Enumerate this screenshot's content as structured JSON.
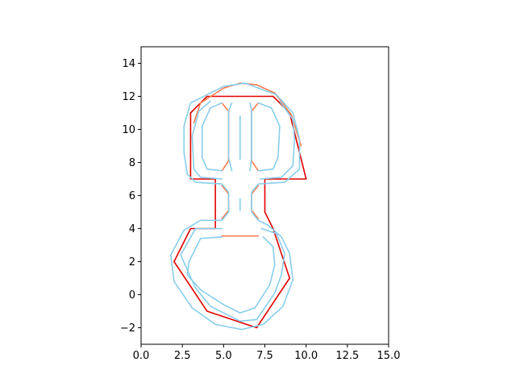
{
  "chart_data": {
    "type": "line",
    "title": "",
    "xlabel": "",
    "ylabel": "",
    "xlim": [
      0,
      15
    ],
    "ylim": [
      -3,
      15
    ],
    "grid": false,
    "aspect": "equal",
    "x_ticks": [
      0.0,
      2.5,
      5.0,
      7.5,
      10.0,
      12.5,
      15.0
    ],
    "x_tick_labels": [
      "0.0",
      "2.5",
      "5.0",
      "7.5",
      "10.0",
      "12.5",
      "15.0"
    ],
    "y_ticks": [
      -2,
      0,
      2,
      4,
      6,
      8,
      10,
      12,
      14
    ],
    "y_tick_labels": [
      "−2",
      "0",
      "2",
      "4",
      "6",
      "8",
      "10",
      "12",
      "14"
    ],
    "series": [
      {
        "color": "#e00000",
        "values": [
          [
            3,
            7
          ],
          [
            3,
            11
          ],
          [
            4,
            12
          ],
          [
            8,
            12
          ],
          [
            9,
            11
          ],
          [
            10,
            7
          ],
          [
            7.5,
            7
          ],
          [
            7.5,
            5
          ],
          [
            8,
            4
          ],
          [
            9,
            1
          ],
          [
            7,
            -2
          ],
          [
            4,
            -1
          ],
          [
            2,
            2
          ],
          [
            3,
            4
          ],
          [
            4.5,
            4
          ],
          [
            4.5,
            7
          ],
          [
            3,
            7
          ]
        ]
      },
      {
        "color": "#ff7f50",
        "values": [
          [
            3.2,
            10.4
          ],
          [
            3.6,
            11.6
          ],
          [
            5,
            12.5
          ],
          [
            6,
            12.8
          ],
          [
            7,
            12.7
          ],
          [
            8.1,
            12.2
          ],
          [
            9.1,
            10.9
          ],
          [
            9.7,
            9
          ]
        ]
      },
      {
        "color": "#ff7f50",
        "values": [
          [
            4.9,
            11.6
          ],
          [
            5.3,
            11.1
          ],
          [
            5.3,
            8.1
          ],
          [
            4.9,
            7.5
          ]
        ]
      },
      {
        "color": "#ff7f50",
        "values": [
          [
            7.1,
            11.6
          ],
          [
            6.7,
            11.1
          ],
          [
            6.7,
            8.1
          ],
          [
            7.1,
            7.5
          ]
        ]
      },
      {
        "color": "#ff7f50",
        "values": [
          [
            4.9,
            6.6
          ],
          [
            5.3,
            6.1
          ],
          [
            5.3,
            5.1
          ],
          [
            4.9,
            4.6
          ]
        ]
      },
      {
        "color": "#ff7f50",
        "values": [
          [
            7.1,
            6.6
          ],
          [
            6.7,
            6.1
          ],
          [
            6.7,
            5.1
          ],
          [
            7.1,
            4.6
          ]
        ]
      },
      {
        "color": "#ff7f50",
        "values": [
          [
            4.9,
            3.55
          ],
          [
            7.1,
            3.55
          ]
        ]
      },
      {
        "color": "#87ceeb",
        "values": [
          [
            4.2,
            12.2
          ],
          [
            3,
            11.6
          ],
          [
            2.6,
            10.2
          ],
          [
            2.6,
            8.6
          ],
          [
            2.8,
            7.3
          ],
          [
            3.3,
            6.8
          ],
          [
            4.9,
            6.7
          ],
          [
            5.3,
            6.2
          ],
          [
            5.3,
            5
          ],
          [
            4.9,
            4.5
          ],
          [
            3.6,
            4.5
          ],
          [
            2.6,
            3.9
          ],
          [
            1.8,
            2.4
          ],
          [
            2,
            0.8
          ],
          [
            3.1,
            -0.8
          ],
          [
            4.5,
            -1.8
          ],
          [
            6.1,
            -2.1
          ],
          [
            7.4,
            -1.8
          ],
          [
            8.6,
            -0.7
          ],
          [
            9.2,
            0.9
          ],
          [
            9,
            2.5
          ],
          [
            8.5,
            3.5
          ],
          [
            7.7,
            4.2
          ],
          [
            7.1,
            4.5
          ],
          [
            6.7,
            5
          ],
          [
            6.7,
            6.2
          ],
          [
            7.1,
            6.7
          ],
          [
            8.7,
            6.8
          ],
          [
            9.6,
            7.6
          ],
          [
            9.6,
            9.4
          ],
          [
            9.2,
            11
          ],
          [
            8.2,
            12.1
          ],
          [
            6.3,
            12.8
          ],
          [
            5,
            12.6
          ],
          [
            4.2,
            12.2
          ]
        ]
      },
      {
        "color": "#87ceeb",
        "values": [
          [
            4.2,
            11.7
          ],
          [
            3.5,
            11.1
          ],
          [
            3.1,
            9.6
          ],
          [
            3.2,
            7.6
          ],
          [
            3.6,
            7.1
          ],
          [
            4.9,
            7
          ]
        ]
      },
      {
        "color": "#87ceeb",
        "values": [
          [
            7.2,
            7
          ],
          [
            8.5,
            7.1
          ],
          [
            9.2,
            7.8
          ],
          [
            9.3,
            9.4
          ],
          [
            9.2,
            10.6
          ],
          [
            8.4,
            11.7
          ]
        ]
      },
      {
        "color": "#87ceeb",
        "values": [
          [
            4.9,
            11.6
          ],
          [
            4.2,
            11.3
          ],
          [
            3.7,
            10.2
          ],
          [
            3.7,
            8.3
          ],
          [
            4,
            7.6
          ],
          [
            4.9,
            7.5
          ]
        ]
      },
      {
        "color": "#87ceeb",
        "values": [
          [
            5.5,
            11.6
          ],
          [
            5.3,
            11.1
          ],
          [
            5.3,
            8.3
          ],
          [
            5.5,
            7.5
          ]
        ]
      },
      {
        "color": "#87ceeb",
        "values": [
          [
            6.6,
            11.6
          ],
          [
            6.7,
            11.1
          ],
          [
            6.7,
            8.3
          ],
          [
            6.6,
            7.5
          ]
        ]
      },
      {
        "color": "#87ceeb",
        "values": [
          [
            7.1,
            11.6
          ],
          [
            7.9,
            11.3
          ],
          [
            8.4,
            10.2
          ],
          [
            8.3,
            8.3
          ],
          [
            8,
            7.6
          ],
          [
            7.1,
            7.5
          ]
        ]
      },
      {
        "color": "#87ceeb",
        "values": [
          [
            6,
            10.8
          ],
          [
            6,
            8.2
          ]
        ]
      },
      {
        "color": "#87ceeb",
        "values": [
          [
            6,
            5.8
          ],
          [
            6,
            5.1
          ]
        ]
      },
      {
        "color": "#87ceeb",
        "values": [
          [
            4.9,
            4
          ],
          [
            3.3,
            4
          ],
          [
            2.4,
            2.4
          ],
          [
            3.3,
            0.4
          ],
          [
            4.2,
            -0.7
          ],
          [
            6,
            -1.6
          ],
          [
            7,
            -1.5
          ],
          [
            8.1,
            0.1
          ],
          [
            8.5,
            1.2
          ],
          [
            8.7,
            2.5
          ],
          [
            8.2,
            3.7
          ],
          [
            7.3,
            4
          ]
        ]
      },
      {
        "color": "#87ceeb",
        "values": [
          [
            4.9,
            3.5
          ],
          [
            3.6,
            3.4
          ],
          [
            2.9,
            2
          ],
          [
            2.8,
            1.2
          ],
          [
            3.6,
            0.3
          ],
          [
            5,
            -0.6
          ],
          [
            6,
            -1.1
          ],
          [
            6.9,
            -0.8
          ],
          [
            7.8,
            0.6
          ],
          [
            8.1,
            1.8
          ],
          [
            8,
            2.9
          ],
          [
            7.4,
            3.5
          ]
        ]
      }
    ]
  }
}
